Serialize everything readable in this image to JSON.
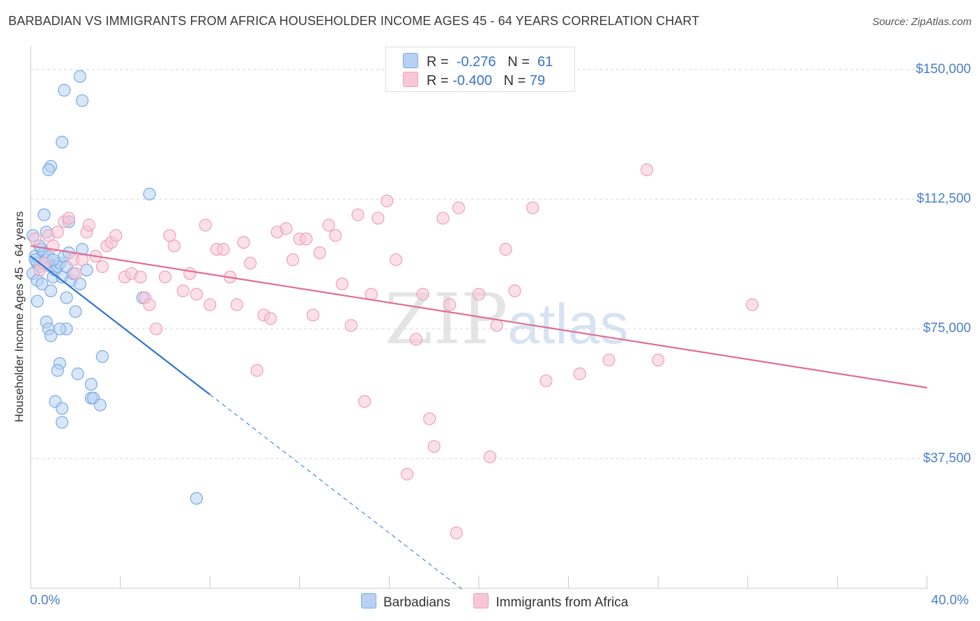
{
  "title": "BARBADIAN VS IMMIGRANTS FROM AFRICA HOUSEHOLDER INCOME AGES 45 - 64 YEARS CORRELATION CHART",
  "source": "Source: ZipAtlas.com",
  "watermark": {
    "zip": "ZIP",
    "atlas": "atlas"
  },
  "legend_top": {
    "rows": [
      {
        "r_label": "R =",
        "r_value": "-0.276",
        "n_label": "N =",
        "n_value": "61"
      },
      {
        "r_label": "R =",
        "r_value": "-0.400",
        "n_label": "N =",
        "n_value": "79"
      }
    ]
  },
  "legend_bottom": [
    "Barbadians",
    "Immigrants from Africa"
  ],
  "colors": {
    "blue_fill": "#b7d1f2",
    "blue_stroke": "#7aaae3",
    "blue_line": "#2f72d2",
    "pink_fill": "#f8c6d6",
    "pink_stroke": "#eea0ba",
    "pink_line": "#e06c96",
    "grid": "#d8d8d8",
    "tick_text": "#4a7fc8"
  },
  "chart_data": {
    "type": "scatter",
    "title": "BARBADIAN VS IMMIGRANTS FROM AFRICA HOUSEHOLDER INCOME AGES 45 - 64 YEARS CORRELATION CHART",
    "xlabel": "",
    "ylabel": "Householder Income Ages 45 - 64 years",
    "xlim": [
      0,
      40
    ],
    "ylim": [
      0,
      155000
    ],
    "x_tick_labels": [
      "0.0%",
      "40.0%"
    ],
    "y_ticks": [
      37500,
      75000,
      112500,
      150000
    ],
    "y_tick_labels": [
      "$37,500",
      "$75,000",
      "$112,500",
      "$150,000"
    ],
    "grid": true,
    "legend_position": "bottom",
    "series": [
      {
        "name": "Barbadians",
        "r": -0.276,
        "n": 61,
        "trend": {
          "x0": 0,
          "y0": 96000,
          "x1": 8,
          "y1": 56000,
          "dash_to_x": 19.3
        },
        "points": [
          [
            0.1,
            102
          ],
          [
            0.2,
            96
          ],
          [
            0.3,
            94
          ],
          [
            0.4,
            93
          ],
          [
            0.5,
            98
          ],
          [
            0.1,
            91
          ],
          [
            0.3,
            89
          ],
          [
            0.6,
            97
          ],
          [
            0.7,
            95
          ],
          [
            0.8,
            96
          ],
          [
            0.9,
            93
          ],
          [
            1.0,
            90
          ],
          [
            1.1,
            92
          ],
          [
            1.2,
            93
          ],
          [
            1.3,
            94
          ],
          [
            1.4,
            90
          ],
          [
            1.5,
            96
          ],
          [
            1.6,
            93
          ],
          [
            1.7,
            97
          ],
          [
            1.8,
            89
          ],
          [
            2.2,
            148
          ],
          [
            1.5,
            144
          ],
          [
            2.3,
            141
          ],
          [
            1.4,
            129
          ],
          [
            0.9,
            122
          ],
          [
            0.8,
            121
          ],
          [
            5.3,
            114
          ],
          [
            0.6,
            108
          ],
          [
            1.7,
            106
          ],
          [
            0.7,
            103
          ],
          [
            2.3,
            98
          ],
          [
            0.2,
            95
          ],
          [
            0.3,
            83
          ],
          [
            1.6,
            84
          ],
          [
            0.5,
            88
          ],
          [
            2.2,
            88
          ],
          [
            0.9,
            86
          ],
          [
            5.0,
            84
          ],
          [
            2.0,
            80
          ],
          [
            0.7,
            77
          ],
          [
            0.8,
            75
          ],
          [
            1.6,
            75
          ],
          [
            0.9,
            73
          ],
          [
            1.3,
            75
          ],
          [
            1.3,
            65
          ],
          [
            1.2,
            63
          ],
          [
            2.1,
            62
          ],
          [
            3.2,
            67
          ],
          [
            2.7,
            59
          ],
          [
            1.1,
            54
          ],
          [
            1.4,
            52
          ],
          [
            2.7,
            55
          ],
          [
            2.8,
            55
          ],
          [
            3.1,
            53
          ],
          [
            1.4,
            48
          ],
          [
            7.4,
            26
          ],
          [
            0.6,
            94
          ],
          [
            1.0,
            95
          ],
          [
            1.9,
            91
          ],
          [
            2.5,
            92
          ],
          [
            0.4,
            99
          ]
        ]
      },
      {
        "name": "Immigrants from Africa",
        "r": -0.4,
        "n": 79,
        "trend": {
          "x0": 0,
          "y0": 99000,
          "x1": 40,
          "y1": 58000
        },
        "points": [
          [
            0.2,
            101
          ],
          [
            0.4,
            92
          ],
          [
            0.6,
            94
          ],
          [
            0.8,
            102
          ],
          [
            1.0,
            99
          ],
          [
            1.2,
            103
          ],
          [
            1.5,
            106
          ],
          [
            1.7,
            107
          ],
          [
            1.9,
            95
          ],
          [
            2.0,
            91
          ],
          [
            2.3,
            95
          ],
          [
            2.5,
            103
          ],
          [
            2.6,
            105
          ],
          [
            2.9,
            96
          ],
          [
            3.2,
            93
          ],
          [
            3.4,
            99
          ],
          [
            3.6,
            100
          ],
          [
            3.8,
            102
          ],
          [
            4.2,
            90
          ],
          [
            4.5,
            91
          ],
          [
            4.9,
            90
          ],
          [
            5.1,
            84
          ],
          [
            5.3,
            82
          ],
          [
            5.6,
            75
          ],
          [
            6.0,
            90
          ],
          [
            6.2,
            102
          ],
          [
            6.4,
            99
          ],
          [
            6.8,
            86
          ],
          [
            7.1,
            91
          ],
          [
            7.4,
            85
          ],
          [
            7.8,
            105
          ],
          [
            8.0,
            82
          ],
          [
            8.3,
            98
          ],
          [
            8.6,
            98
          ],
          [
            8.9,
            90
          ],
          [
            9.2,
            82
          ],
          [
            9.5,
            100
          ],
          [
            9.8,
            94
          ],
          [
            10.1,
            63
          ],
          [
            10.4,
            79
          ],
          [
            10.7,
            78
          ],
          [
            11.0,
            103
          ],
          [
            11.4,
            104
          ],
          [
            11.7,
            95
          ],
          [
            12.0,
            101
          ],
          [
            12.3,
            101
          ],
          [
            12.6,
            79
          ],
          [
            12.9,
            97
          ],
          [
            13.3,
            105
          ],
          [
            13.6,
            102
          ],
          [
            13.9,
            88
          ],
          [
            14.3,
            76
          ],
          [
            14.6,
            108
          ],
          [
            14.9,
            54
          ],
          [
            15.2,
            85
          ],
          [
            15.5,
            107
          ],
          [
            15.9,
            112
          ],
          [
            16.3,
            95
          ],
          [
            16.8,
            33
          ],
          [
            17.2,
            72
          ],
          [
            17.5,
            85
          ],
          [
            17.8,
            49
          ],
          [
            18.0,
            41
          ],
          [
            18.4,
            107
          ],
          [
            18.7,
            82
          ],
          [
            19.0,
            16
          ],
          [
            19.1,
            110
          ],
          [
            20.0,
            85
          ],
          [
            20.5,
            38
          ],
          [
            20.8,
            76
          ],
          [
            21.2,
            98
          ],
          [
            21.6,
            86
          ],
          [
            22.4,
            110
          ],
          [
            23.0,
            60
          ],
          [
            24.5,
            62
          ],
          [
            25.8,
            66
          ],
          [
            27.5,
            121
          ],
          [
            28.0,
            66
          ],
          [
            32.2,
            82
          ]
        ]
      }
    ]
  }
}
